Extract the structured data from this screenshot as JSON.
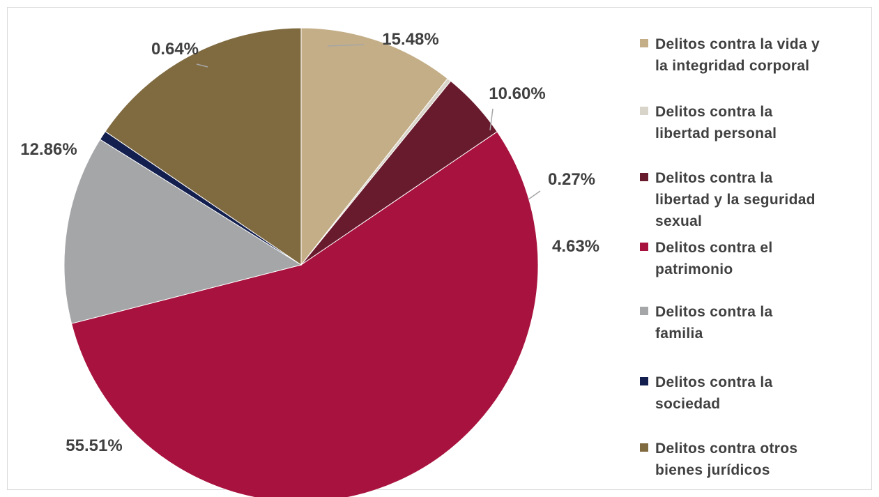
{
  "chart_data": {
    "type": "pie",
    "title": "",
    "legend_position": "right",
    "slices": [
      {
        "name": "Delitos contra la vida y la integridad corporal",
        "value": 10.6,
        "label": "10.60%",
        "color": "#C4AE87"
      },
      {
        "name": "Delitos contra la libertad personal",
        "value": 0.27,
        "label": "0.27%",
        "color": "#D9D4C9"
      },
      {
        "name": "Delitos contra la libertad y la seguridad sexual",
        "value": 4.63,
        "label": "4.63%",
        "color": "#691B2E"
      },
      {
        "name": "Delitos contra el patrimonio",
        "value": 55.51,
        "label": "55.51%",
        "color": "#A8123E"
      },
      {
        "name": "Delitos contra la familia",
        "value": 12.86,
        "label": "12.86%",
        "color": "#A5A6A8"
      },
      {
        "name": "Delitos contra la sociedad",
        "value": 0.64,
        "label": "0.64%",
        "color": "#13204F"
      },
      {
        "name": "Delitos contra otros bienes jurídicos",
        "value": 15.48,
        "label": "15.48%",
        "color": "#806B41"
      }
    ]
  },
  "legend": {
    "items": [
      {
        "lines": [
          "Delitos contra la vida y",
          "la integridad corporal"
        ],
        "color": "#C4AE87"
      },
      {
        "lines": [
          "Delitos contra la",
          "libertad personal"
        ],
        "color": "#D9D4C9"
      },
      {
        "lines": [
          "Delitos contra la",
          "libertad y la seguridad",
          "sexual"
        ],
        "color": "#691B2E"
      },
      {
        "lines": [
          "Delitos contra el",
          "patrimonio"
        ],
        "color": "#A8123E"
      },
      {
        "lines": [
          "Delitos contra la",
          "familia"
        ],
        "color": "#A5A6A8"
      },
      {
        "lines": [
          "Delitos contra la",
          "sociedad"
        ],
        "color": "#13204F"
      },
      {
        "lines": [
          "Delitos contra otros",
          "bienes jurídicos"
        ],
        "color": "#806B41"
      }
    ]
  }
}
